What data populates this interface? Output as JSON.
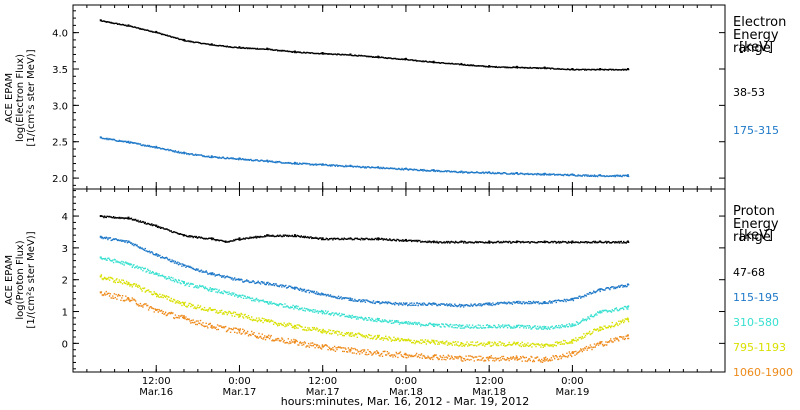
{
  "chart_data": [
    {
      "type": "scatter",
      "ylabel": [
        "ACE EPAM",
        "log(Electron Flux)",
        "[1/(cm²s ster MeV)]"
      ],
      "ylim": [
        1.85,
        4.38
      ],
      "yticks": [
        "2.0",
        "2.5",
        "3.0",
        "3.5",
        "4.0"
      ],
      "legend_title": "Electron Energy range",
      "legend_unit": "[keV]",
      "series": [
        {
          "name": "38-53",
          "color": "#000000",
          "x": [
            0,
            4,
            8,
            12,
            16,
            20,
            24,
            28,
            32,
            36,
            40,
            44,
            48,
            52,
            56,
            60,
            64,
            68,
            72,
            76
          ],
          "y": [
            4.17,
            4.1,
            4.01,
            3.9,
            3.84,
            3.8,
            3.78,
            3.74,
            3.72,
            3.7,
            3.67,
            3.64,
            3.6,
            3.57,
            3.54,
            3.53,
            3.52,
            3.5,
            3.5,
            3.5
          ]
        },
        {
          "name": "175-315",
          "color": "#1e78c8",
          "x": [
            0,
            4,
            8,
            12,
            16,
            20,
            24,
            28,
            32,
            36,
            40,
            44,
            48,
            52,
            56,
            60,
            64,
            68,
            72,
            76
          ],
          "y": [
            2.56,
            2.5,
            2.43,
            2.35,
            2.3,
            2.27,
            2.24,
            2.21,
            2.19,
            2.17,
            2.15,
            2.13,
            2.11,
            2.09,
            2.08,
            2.07,
            2.06,
            2.05,
            2.04,
            2.04
          ]
        }
      ]
    },
    {
      "type": "scatter",
      "ylabel": [
        "ACE EPAM",
        "log(Proton Flux)",
        "[1/(cm²s ster MeV)]"
      ],
      "ylim": [
        -0.9,
        4.85
      ],
      "yticks": [
        "0",
        "1",
        "2",
        "3",
        "4"
      ],
      "legend_title": "Proton Energy range",
      "legend_unit": "[keV]",
      "series": [
        {
          "name": "47-68",
          "color": "#000000",
          "x": [
            0,
            4,
            8,
            12,
            16,
            18,
            20,
            24,
            28,
            32,
            36,
            40,
            44,
            48,
            52,
            56,
            60,
            64,
            68,
            72,
            76
          ],
          "y": [
            4.0,
            3.95,
            3.7,
            3.4,
            3.3,
            3.2,
            3.3,
            3.4,
            3.4,
            3.3,
            3.3,
            3.3,
            3.25,
            3.2,
            3.2,
            3.2,
            3.2,
            3.2,
            3.2,
            3.2,
            3.2
          ]
        },
        {
          "name": "115-195",
          "color": "#1e78c8",
          "x": [
            0,
            4,
            8,
            12,
            16,
            20,
            24,
            28,
            32,
            36,
            40,
            44,
            48,
            52,
            56,
            60,
            64,
            68,
            72,
            76
          ],
          "y": [
            3.35,
            3.2,
            2.8,
            2.45,
            2.2,
            2.0,
            1.9,
            1.75,
            1.55,
            1.4,
            1.3,
            1.25,
            1.25,
            1.2,
            1.25,
            1.3,
            1.3,
            1.4,
            1.7,
            1.85
          ]
        },
        {
          "name": "310-580",
          "color": "#38e0d0",
          "x": [
            0,
            4,
            8,
            12,
            16,
            20,
            24,
            28,
            32,
            36,
            40,
            44,
            48,
            52,
            56,
            60,
            64,
            68,
            72,
            76
          ],
          "y": [
            2.7,
            2.5,
            2.2,
            1.9,
            1.7,
            1.5,
            1.3,
            1.15,
            1.0,
            0.85,
            0.75,
            0.65,
            0.6,
            0.55,
            0.55,
            0.55,
            0.5,
            0.6,
            1.0,
            1.15
          ]
        },
        {
          "name": "795-1193",
          "color": "#d8e000",
          "x": [
            0,
            4,
            8,
            12,
            16,
            20,
            24,
            28,
            32,
            36,
            40,
            44,
            48,
            52,
            56,
            60,
            64,
            68,
            72,
            76
          ],
          "y": [
            2.1,
            1.9,
            1.55,
            1.25,
            1.05,
            0.9,
            0.7,
            0.55,
            0.4,
            0.3,
            0.2,
            0.1,
            0.05,
            0.0,
            0.0,
            0.0,
            -0.05,
            0.1,
            0.5,
            0.75
          ]
        },
        {
          "name": "1060-1900",
          "color": "#ee8a1a",
          "x": [
            0,
            4,
            8,
            12,
            16,
            20,
            24,
            28,
            32,
            36,
            40,
            44,
            48,
            52,
            56,
            60,
            64,
            68,
            72,
            76
          ],
          "y": [
            1.6,
            1.4,
            1.05,
            0.8,
            0.55,
            0.4,
            0.2,
            0.05,
            -0.1,
            -0.2,
            -0.3,
            -0.35,
            -0.4,
            -0.45,
            -0.45,
            -0.45,
            -0.5,
            -0.3,
            0.0,
            0.25
          ]
        }
      ]
    }
  ],
  "x_axis": {
    "xlabel": "hours:minutes, Mar. 16, 2012 - Mar. 19, 2012",
    "xlim": [
      -4,
      90
    ],
    "ticks": [
      {
        "x": 8,
        "time": "12:00",
        "date": "Mar.16"
      },
      {
        "x": 20,
        "time": "0:00",
        "date": "Mar.17"
      },
      {
        "x": 32,
        "time": "12:00",
        "date": "Mar.17"
      },
      {
        "x": 44,
        "time": "0:00",
        "date": "Mar.18"
      },
      {
        "x": 56,
        "time": "12:00",
        "date": "Mar.18"
      },
      {
        "x": 68,
        "time": "0:00",
        "date": "Mar.19"
      }
    ]
  }
}
